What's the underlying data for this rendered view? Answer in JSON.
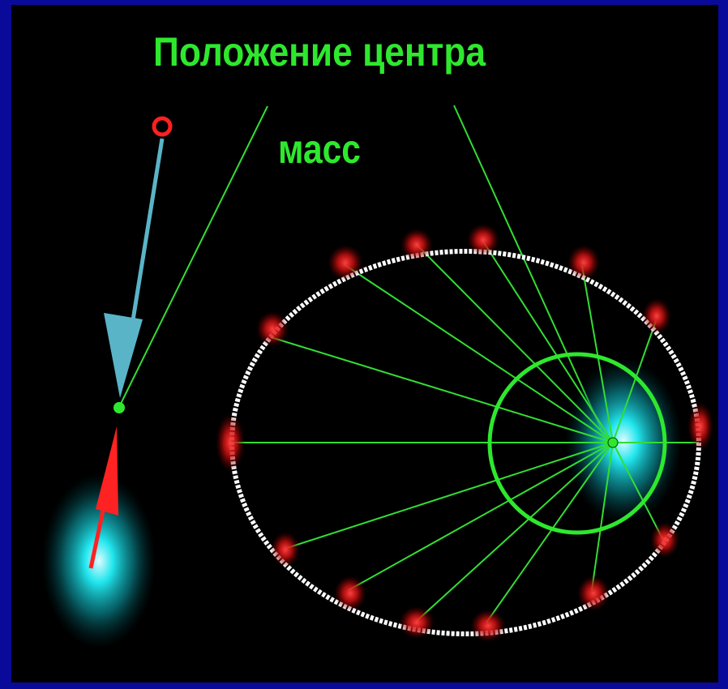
{
  "title_line1": "Положение центра",
  "title_line2": "масс",
  "colors": {
    "background": "#000000",
    "border": "#0a0a9a",
    "label": "#2ee82e",
    "lines": "#33dd33",
    "orbit": "#ffffff",
    "planet": "#ff2020",
    "star": "#00dddd",
    "arrow_planet_velocity": "#5ab4c8",
    "arrow_star_velocity": "#ff2222"
  },
  "icons": [
    "planet-dot",
    "star-glow",
    "center-of-mass-dot",
    "velocity-arrow"
  ]
}
